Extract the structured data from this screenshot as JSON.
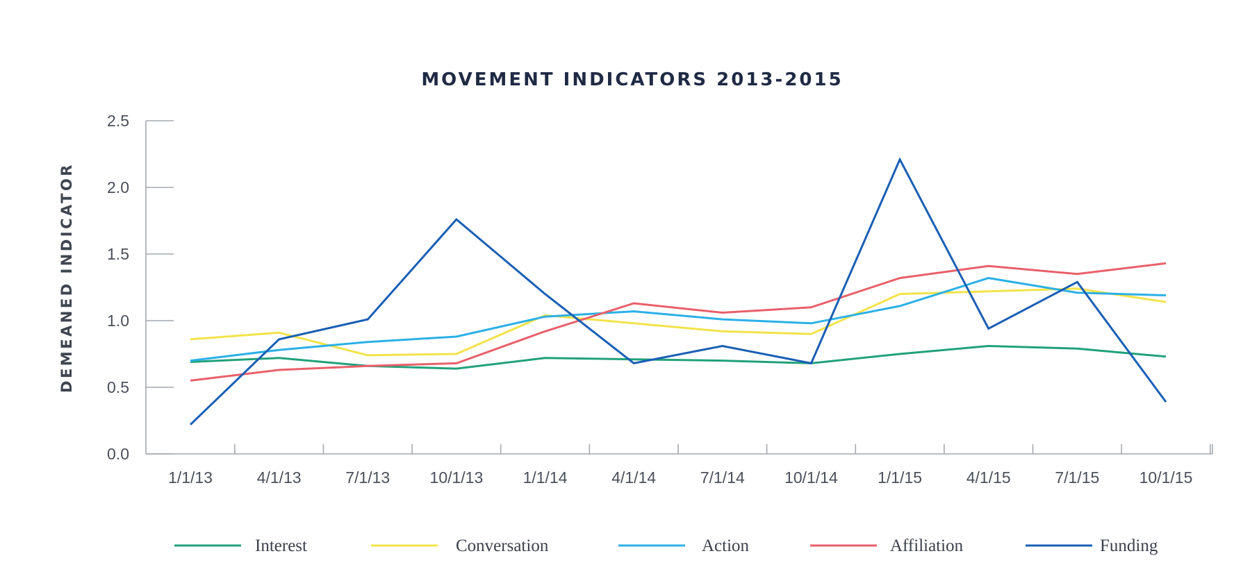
{
  "chart_data": {
    "type": "line",
    "title": "MOVEMENT INDICATORS 2013-2015",
    "xlabel": "",
    "ylabel": "DEMEANED INDICATOR",
    "categories": [
      "1/1/13",
      "4/1/13",
      "7/1/13",
      "10/1/13",
      "1/1/14",
      "4/1/14",
      "7/1/14",
      "10/1/14",
      "1/1/15",
      "4/1/15",
      "7/1/15",
      "10/1/15"
    ],
    "ylim": [
      0,
      2.5
    ],
    "yticks": [
      "0.0",
      "0.5",
      "1.0",
      "1.5",
      "2.0",
      "2.5"
    ],
    "grid": false,
    "legend_position": "bottom",
    "series": [
      {
        "name": "Interest",
        "color": "#21a17a",
        "values": [
          0.69,
          0.72,
          0.66,
          0.64,
          0.72,
          0.71,
          0.7,
          0.68,
          0.75,
          0.81,
          0.79,
          0.73
        ]
      },
      {
        "name": "Conversation",
        "color": "#f2e34a",
        "values": [
          0.86,
          0.91,
          0.74,
          0.75,
          1.04,
          0.98,
          0.92,
          0.9,
          1.2,
          1.22,
          1.24,
          1.14
        ]
      },
      {
        "name": "Action",
        "color": "#2bb0e6",
        "values": [
          0.7,
          0.78,
          0.84,
          0.88,
          1.03,
          1.07,
          1.01,
          0.98,
          1.11,
          1.32,
          1.21,
          1.19
        ]
      },
      {
        "name": "Affiliation",
        "color": "#e8606a",
        "values": [
          0.55,
          0.63,
          0.66,
          0.68,
          0.92,
          1.13,
          1.06,
          1.1,
          1.32,
          1.41,
          1.35,
          1.43
        ]
      },
      {
        "name": "Funding",
        "color": "#1a5fb4",
        "values": [
          0.22,
          0.86,
          1.01,
          1.76,
          1.2,
          0.68,
          0.81,
          0.68,
          2.21,
          0.94,
          1.29,
          0.39
        ]
      }
    ]
  }
}
